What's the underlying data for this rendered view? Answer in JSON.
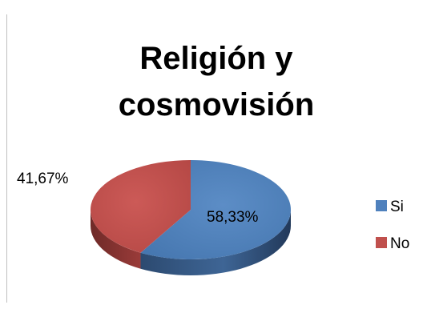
{
  "chart_data": {
    "type": "pie",
    "title_lines": [
      "Religión y",
      "cosmovisión"
    ],
    "categories": [
      "Si",
      "No"
    ],
    "values": [
      58.33,
      41.67
    ],
    "data_labels": [
      "58,33%",
      "41,67%"
    ],
    "colors": [
      "#4f81bd",
      "#c0504d"
    ],
    "legend_position": "right",
    "style": "3d"
  }
}
